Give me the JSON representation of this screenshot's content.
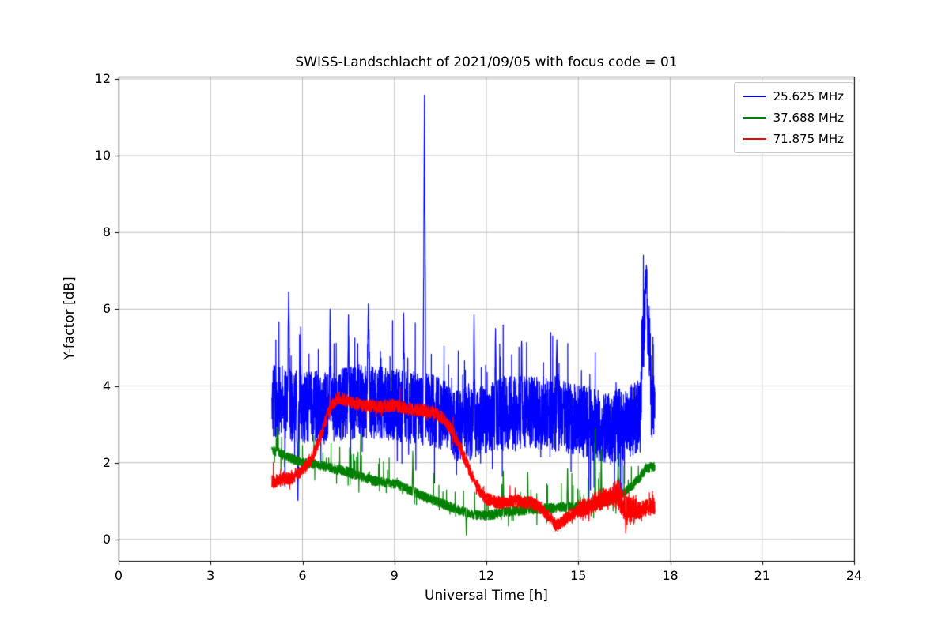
{
  "chart_data": {
    "type": "line",
    "title": "SWISS-Landschlacht of 2021/09/05 with focus code = 01",
    "xlabel": "Universal Time [h]",
    "ylabel": "Y-factor [dB]",
    "xlim": [
      0,
      24
    ],
    "ylim": [
      -0.56,
      12.06
    ],
    "xticks": [
      0,
      3,
      6,
      9,
      12,
      15,
      18,
      21,
      24
    ],
    "yticks": [
      0,
      2,
      4,
      6,
      8,
      10,
      12
    ],
    "grid": true,
    "grid_color": "#b0b0b0",
    "legend_position": "upper right",
    "series": [
      {
        "name": "25.625 MHz",
        "color": "#0000ff",
        "x_start": 5.0,
        "x_end": 17.5,
        "trend": {
          "x": [
            5.0,
            5.3,
            6.0,
            7.0,
            8.0,
            9.0,
            10.0,
            10.5,
            11.0,
            11.5,
            12.0,
            12.5,
            13.0,
            14.0,
            15.0,
            15.5,
            16.0,
            16.5,
            17.0,
            17.1,
            17.2,
            17.3,
            17.4,
            17.5
          ],
          "y": [
            3.6,
            3.6,
            3.4,
            3.5,
            3.6,
            3.5,
            3.4,
            3.3,
            3.0,
            3.0,
            3.1,
            3.3,
            3.3,
            3.3,
            3.1,
            3.0,
            2.9,
            3.0,
            3.2,
            5.0,
            6.2,
            5.5,
            3.4,
            3.3
          ]
        },
        "noise": 0.95,
        "noise_zones": [
          {
            "from": 17.05,
            "to": 17.35,
            "amp": 1.0
          }
        ],
        "tail_up": {
          "p": 0.05,
          "amp": 1.6
        },
        "tail_down": {
          "p": 0.035,
          "amp": 1.5
        },
        "spikes": [
          {
            "x": 5.55,
            "y": 6.55,
            "w": 0.04
          },
          {
            "x": 5.85,
            "y": 0.9,
            "w": 0.03
          },
          {
            "x": 6.9,
            "y": 6.0,
            "w": 0.03
          },
          {
            "x": 7.5,
            "y": 5.85,
            "w": 0.03
          },
          {
            "x": 8.15,
            "y": 6.25,
            "w": 0.05
          },
          {
            "x": 9.3,
            "y": 5.9,
            "w": 0.03
          },
          {
            "x": 9.98,
            "y": 11.58,
            "w": 0.045
          },
          {
            "x": 11.6,
            "y": 5.85,
            "w": 0.03
          },
          {
            "x": 12.3,
            "y": 5.5,
            "w": 0.03
          },
          {
            "x": 13.15,
            "y": 5.3,
            "w": 0.03
          },
          {
            "x": 14.3,
            "y": 5.2,
            "w": 0.03
          },
          {
            "x": 17.22,
            "y": 7.15,
            "w": 0.04
          }
        ]
      },
      {
        "name": "37.688 MHz",
        "color": "#008000",
        "x_start": 5.0,
        "x_end": 17.5,
        "trend": {
          "x": [
            5.0,
            5.5,
            6.0,
            6.5,
            7.0,
            7.5,
            8.0,
            8.5,
            9.0,
            9.5,
            10.0,
            10.5,
            11.0,
            11.5,
            12.0,
            12.5,
            13.0,
            13.5,
            14.0,
            14.5,
            15.0,
            15.5,
            16.0,
            16.5,
            17.0,
            17.2,
            17.5
          ],
          "y": [
            2.35,
            2.15,
            2.0,
            1.95,
            1.85,
            1.75,
            1.6,
            1.5,
            1.45,
            1.3,
            1.1,
            0.95,
            0.8,
            0.65,
            0.62,
            0.7,
            0.75,
            0.78,
            0.8,
            0.85,
            0.85,
            0.9,
            1.0,
            1.2,
            1.6,
            1.85,
            1.9
          ]
        },
        "noise": 0.13,
        "noise_zones": [],
        "tail_up": {
          "p": 0.02,
          "amp": 0.8
        },
        "tail_down": {
          "p": 0.015,
          "amp": 0.4
        },
        "spikes": [
          {
            "x": 5.2,
            "y": 2.9,
            "w": 0.02
          },
          {
            "x": 7.9,
            "y": 2.75,
            "w": 0.02
          },
          {
            "x": 9.6,
            "y": 2.3,
            "w": 0.02
          },
          {
            "x": 11.35,
            "y": 0.05,
            "w": 0.02
          },
          {
            "x": 12.55,
            "y": 1.9,
            "w": 0.02
          },
          {
            "x": 13.35,
            "y": 1.85,
            "w": 0.02
          },
          {
            "x": 14.65,
            "y": 1.95,
            "w": 0.02
          },
          {
            "x": 15.55,
            "y": 3.1,
            "w": 0.02
          },
          {
            "x": 15.75,
            "y": 2.5,
            "w": 0.02
          },
          {
            "x": 16.3,
            "y": 2.3,
            "w": 0.02
          }
        ]
      },
      {
        "name": "71.875 MHz",
        "color": "#ff0000",
        "x_start": 5.0,
        "x_end": 17.5,
        "trend": {
          "x": [
            5.0,
            5.3,
            5.6,
            6.0,
            6.3,
            6.6,
            6.8,
            7.0,
            7.2,
            7.5,
            8.0,
            8.5,
            9.0,
            9.5,
            10.0,
            10.3,
            10.6,
            10.9,
            11.2,
            11.5,
            11.8,
            12.0,
            12.5,
            13.0,
            13.5,
            13.8,
            14.0,
            14.3,
            14.6,
            15.0,
            15.3,
            15.6,
            16.0,
            16.3,
            16.6,
            17.0,
            17.3,
            17.5
          ],
          "y": [
            1.5,
            1.55,
            1.6,
            1.8,
            2.1,
            2.7,
            3.2,
            3.55,
            3.7,
            3.6,
            3.5,
            3.45,
            3.5,
            3.4,
            3.35,
            3.3,
            3.15,
            2.8,
            2.3,
            1.7,
            1.25,
            1.05,
            0.95,
            1.0,
            0.95,
            0.8,
            0.65,
            0.35,
            0.55,
            0.75,
            0.8,
            1.0,
            1.1,
            1.2,
            0.8,
            0.75,
            0.85,
            0.85
          ]
        },
        "noise": 0.17,
        "noise_zones": [
          {
            "from": 15.0,
            "to": 16.1,
            "amp": 0.28
          },
          {
            "from": 16.1,
            "to": 16.9,
            "amp": 0.42
          },
          {
            "from": 16.9,
            "to": 17.5,
            "amp": 0.22
          }
        ],
        "tail_up": {
          "p": 0.01,
          "amp": 0.4
        },
        "tail_down": {
          "p": 0.01,
          "amp": 0.3
        },
        "spikes": [
          {
            "x": 16.55,
            "y": 0.12,
            "w": 0.025
          }
        ]
      }
    ]
  }
}
